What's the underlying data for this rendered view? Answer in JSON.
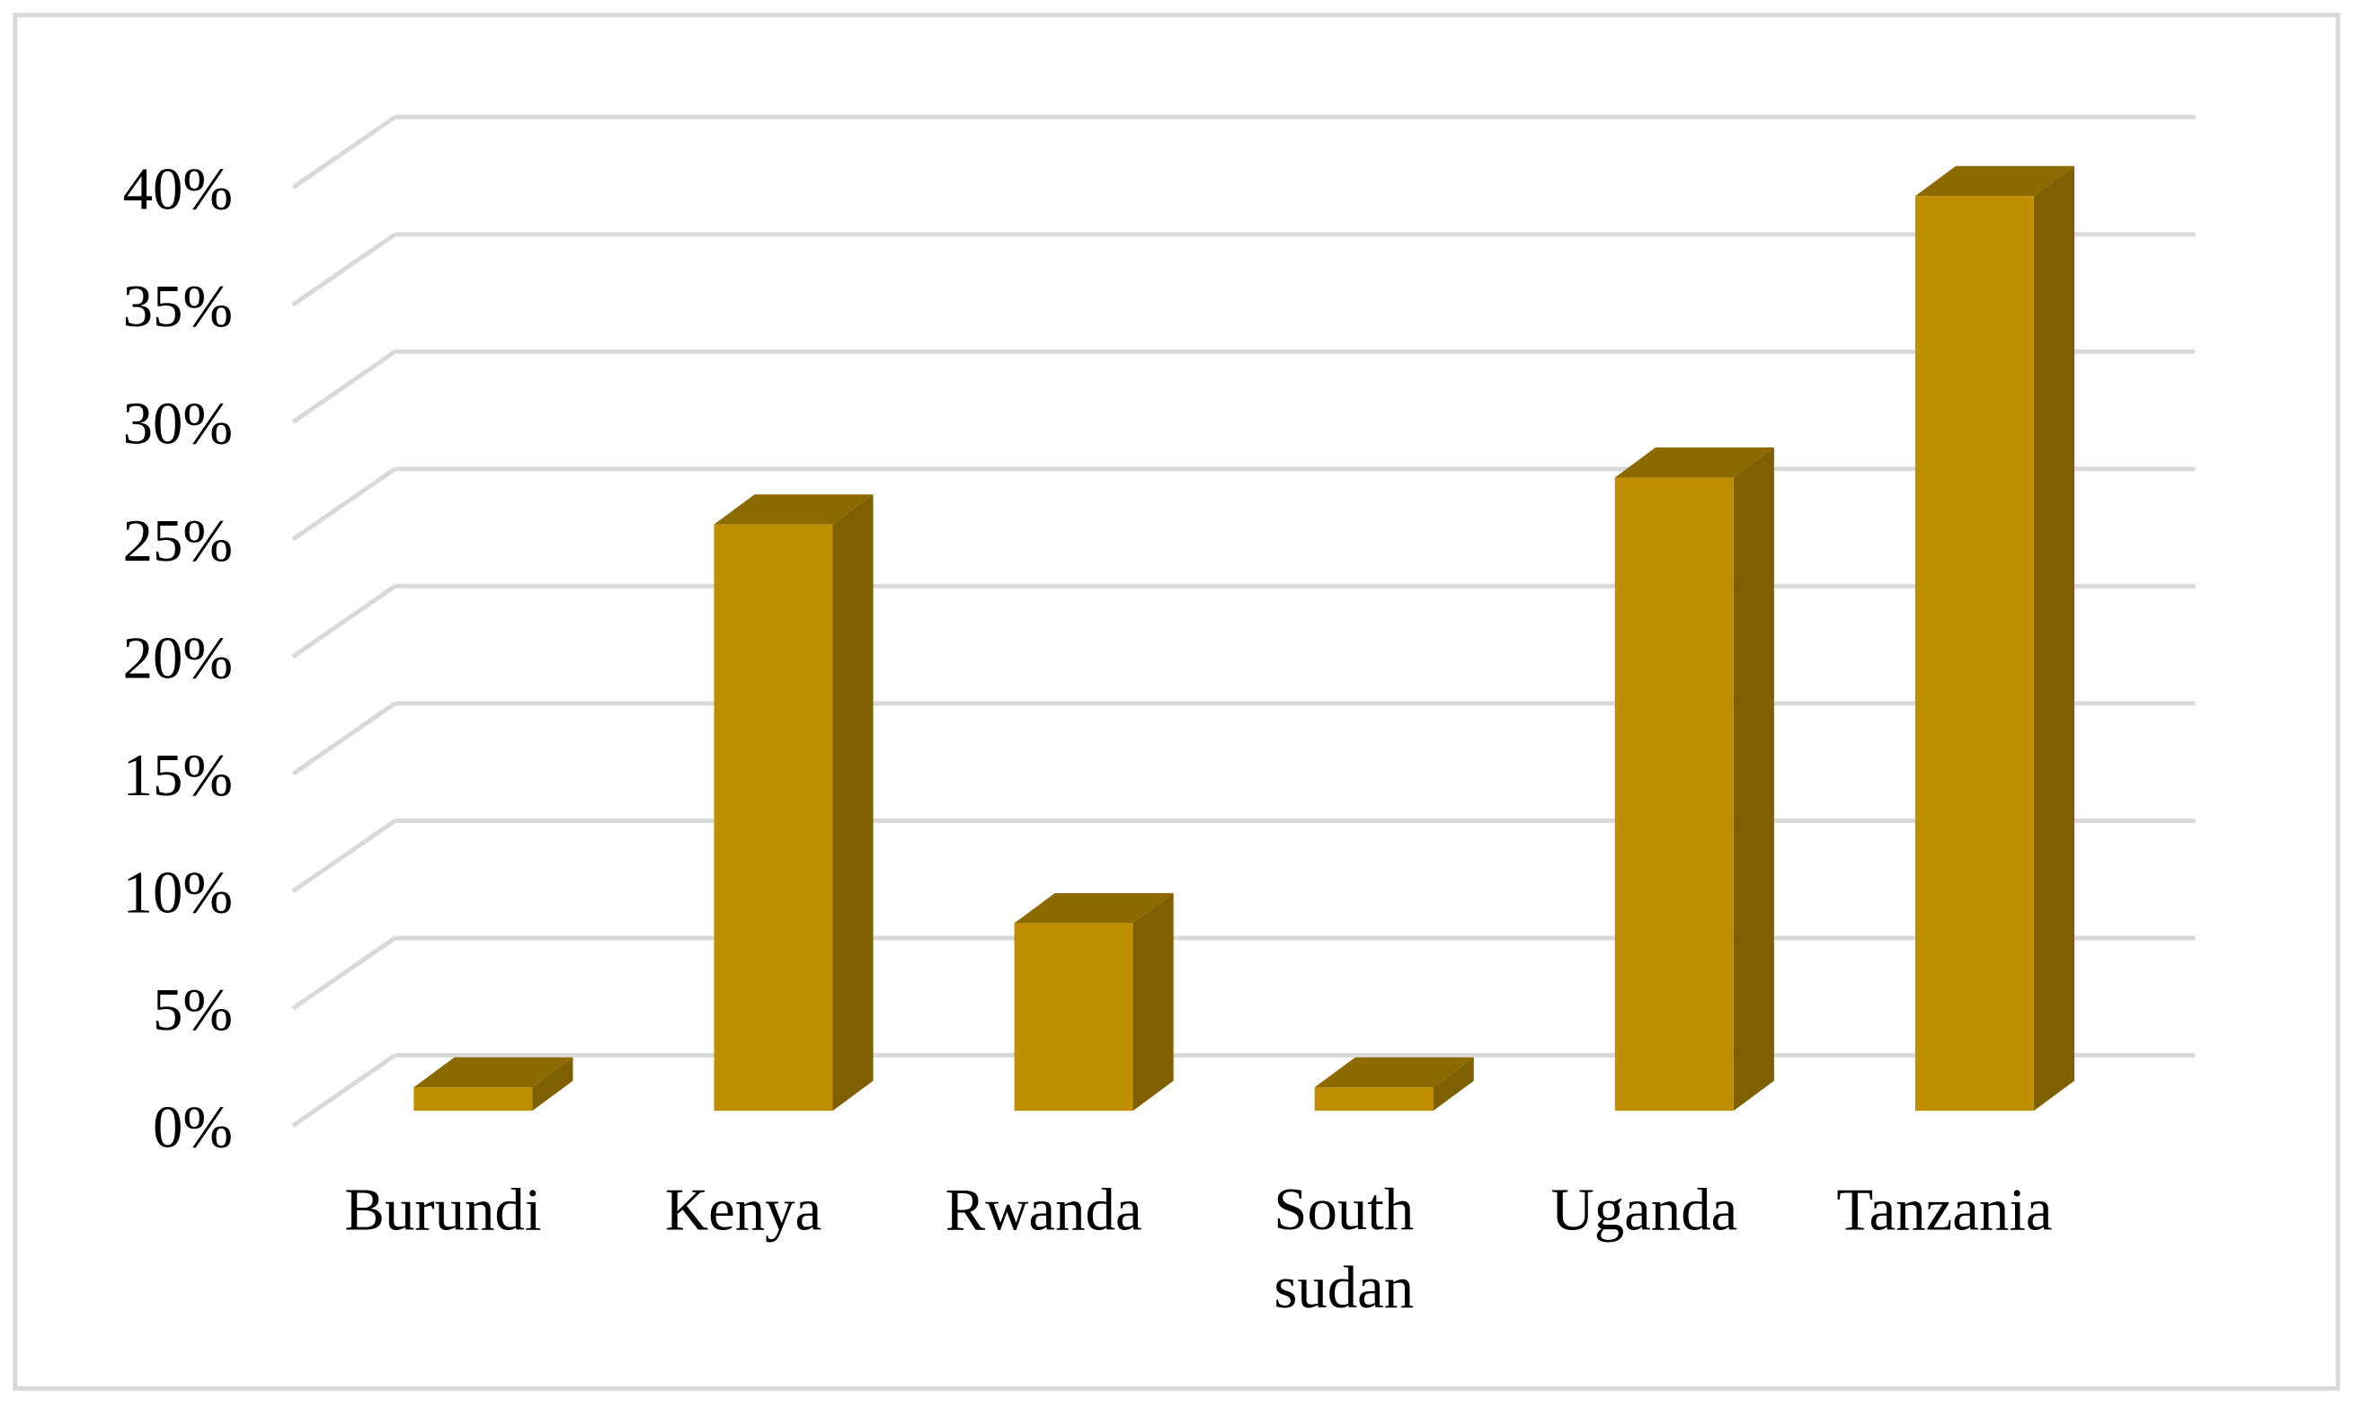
{
  "chart_data": {
    "type": "bar3d",
    "categories": [
      "Burundi",
      "Kenya",
      "Rwanda",
      "South sudan",
      "Uganda",
      "Tanzania"
    ],
    "values": [
      1,
      25,
      8,
      1,
      27,
      39
    ],
    "color": "#bf8f00",
    "side_color": "#7f6000",
    "top_color": "#8c6a00",
    "ylim": [
      0,
      40
    ],
    "yticks": [
      {
        "value": 0,
        "label": "0%"
      },
      {
        "value": 5,
        "label": "5%"
      },
      {
        "value": 10,
        "label": "10%"
      },
      {
        "value": 15,
        "label": "15%"
      },
      {
        "value": 20,
        "label": "20%"
      },
      {
        "value": 25,
        "label": "25%"
      },
      {
        "value": 30,
        "label": "30%"
      },
      {
        "value": 35,
        "label": "35%"
      },
      {
        "value": 40,
        "label": "40%"
      }
    ],
    "grid": true
  }
}
